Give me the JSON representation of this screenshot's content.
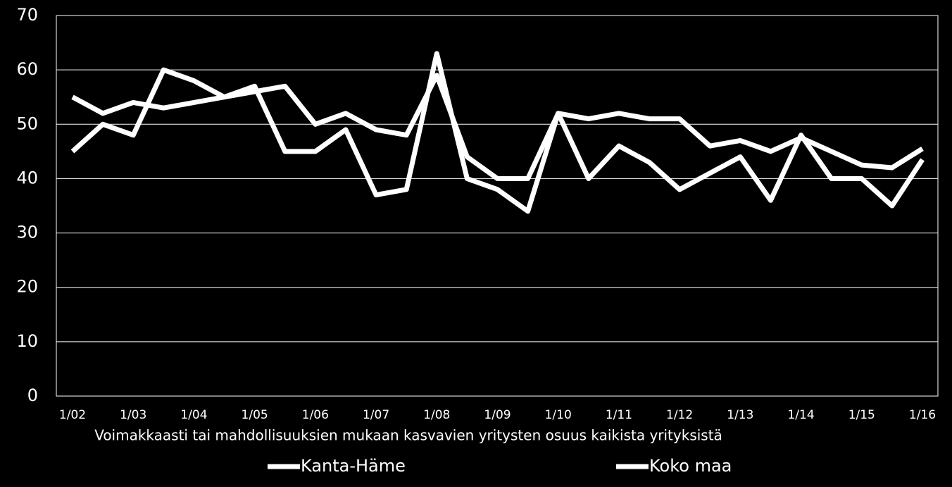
{
  "chart_data": {
    "type": "line",
    "x_label": "Voimakkaasti tai mahdollisuuksien mukaan kasvavien yritysten osuus kaikista yrityksistä",
    "categories": [
      "1/02",
      null,
      "1/03",
      null,
      "1/04",
      null,
      "1/05",
      null,
      "1/06",
      null,
      "1/07",
      null,
      "1/08",
      null,
      "1/09",
      null,
      "1/10",
      null,
      "1/11",
      null,
      "1/12",
      null,
      "1/13",
      null,
      "1/14",
      null,
      "1/15",
      null,
      "1/16"
    ],
    "series": [
      {
        "name": "Kanta-Häme",
        "color": "#ffffff",
        "values": [
          45,
          50,
          48,
          60,
          58,
          55,
          57,
          45,
          45,
          49,
          37,
          38,
          63,
          40,
          38,
          34,
          52,
          40,
          46,
          43,
          38,
          41,
          44,
          36,
          48,
          40,
          40,
          35,
          43.5
        ]
      },
      {
        "name": "Koko maa",
        "color": "#ffffff",
        "values": [
          55,
          52,
          54,
          53,
          54,
          55,
          56,
          57,
          50,
          52,
          49,
          48,
          59,
          44,
          40,
          40,
          52,
          51,
          52,
          51,
          51,
          46,
          47,
          45,
          47.5,
          45,
          42.5,
          42,
          45.5
        ]
      }
    ],
    "ylim": [
      0,
      70
    ],
    "yticks": [
      0,
      10,
      20,
      30,
      40,
      50,
      60,
      70
    ],
    "grid": true,
    "background": "#000000"
  }
}
